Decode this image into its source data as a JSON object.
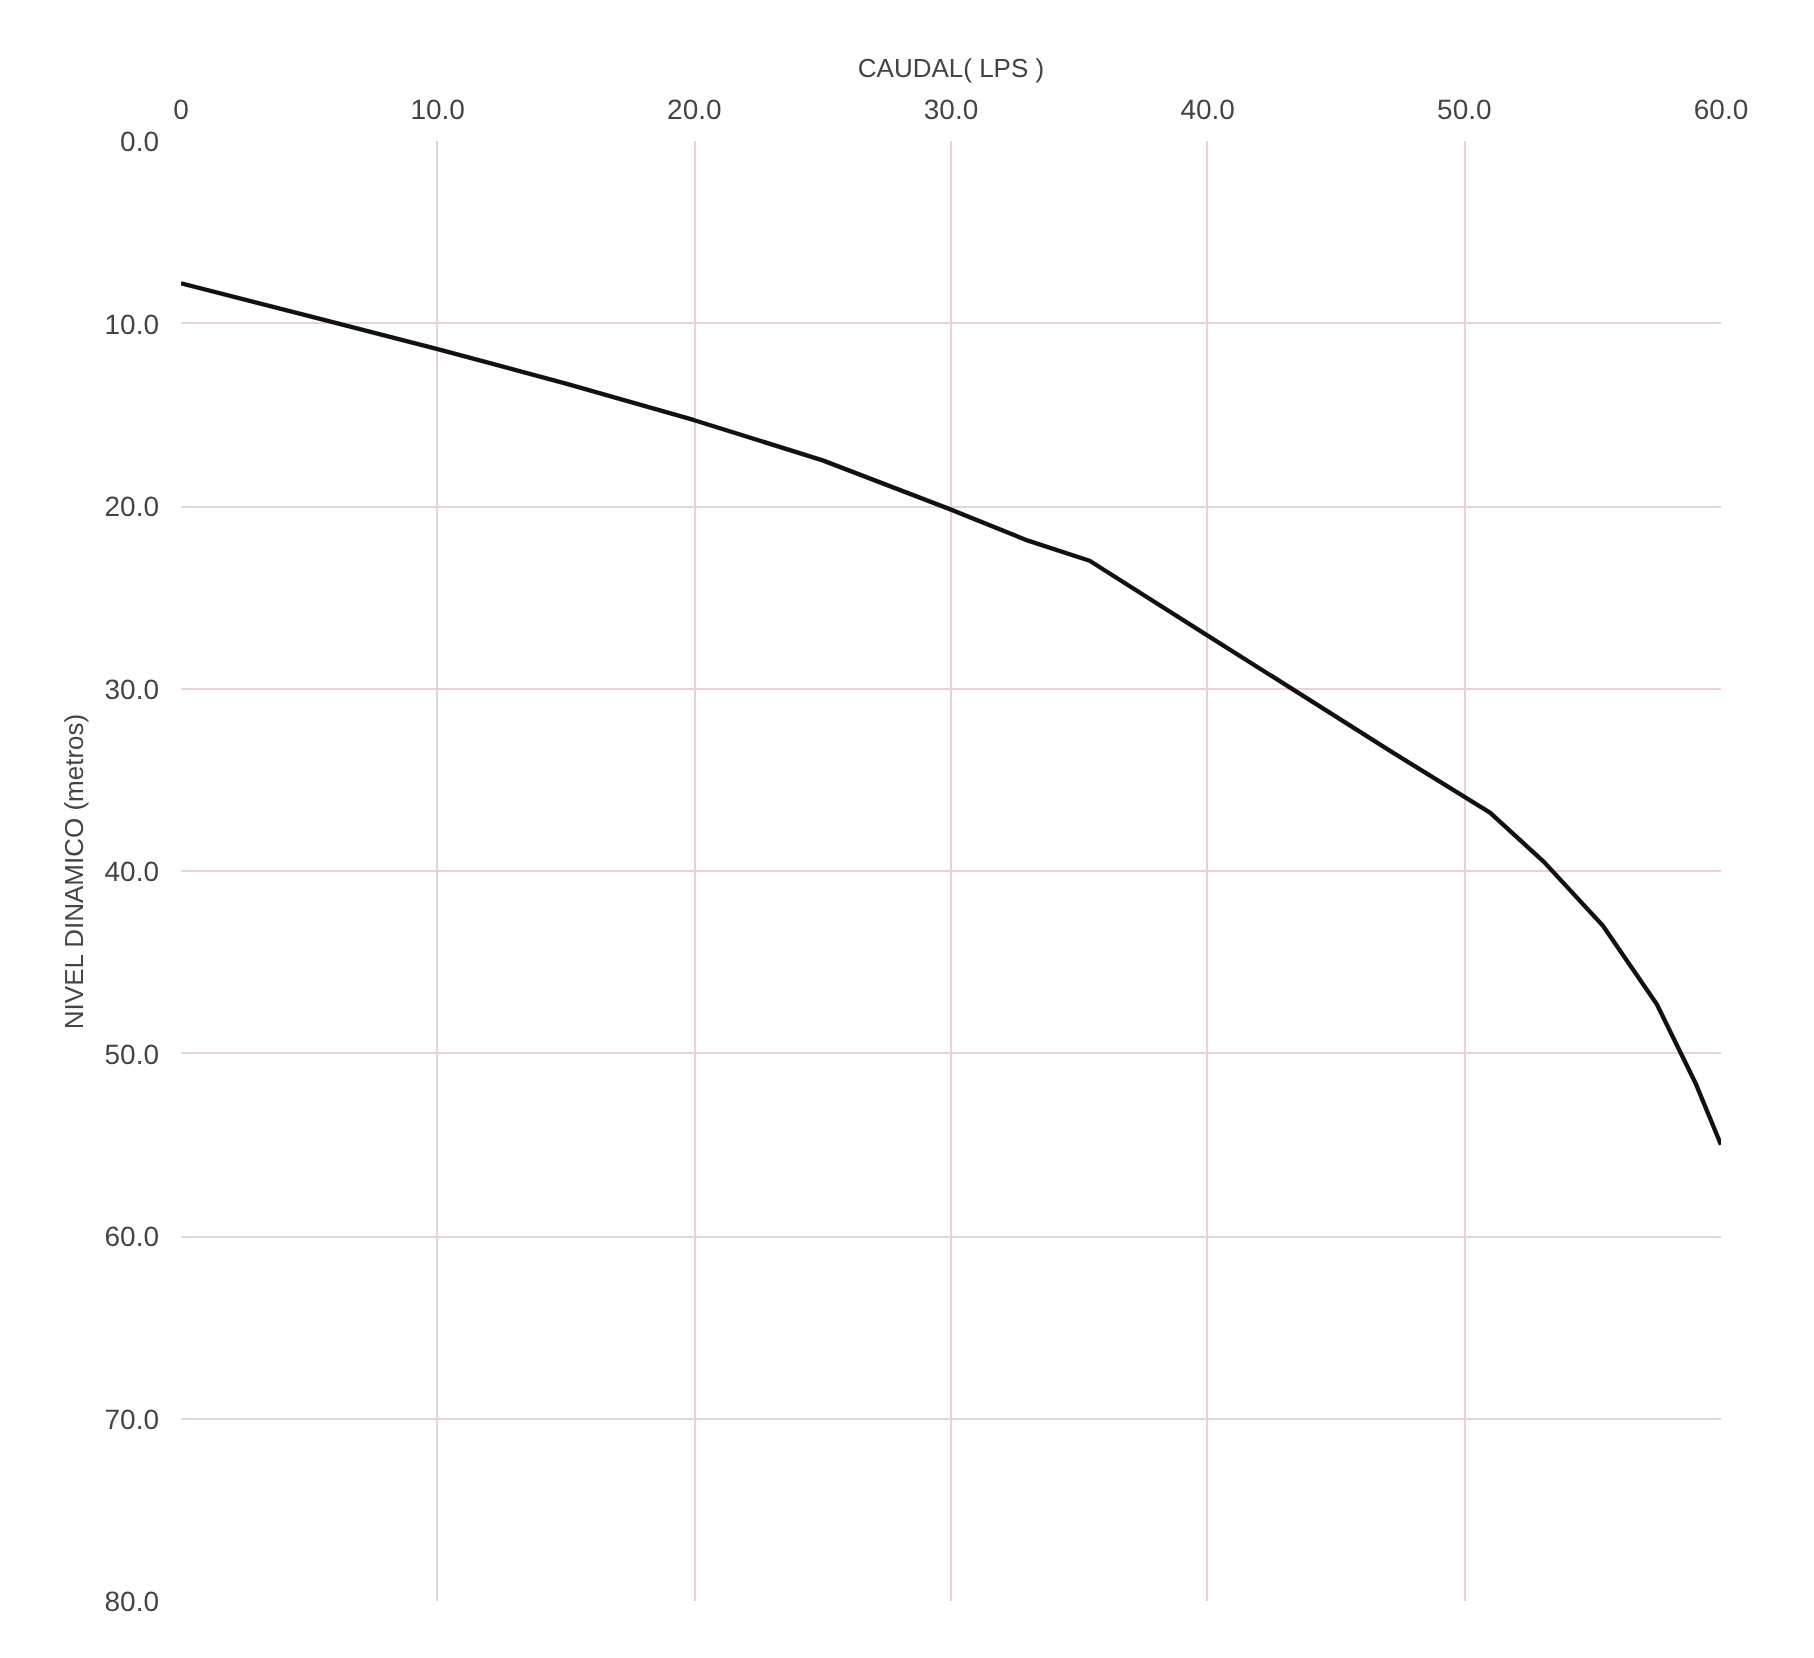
{
  "chart_data": {
    "type": "line",
    "xlabel": "CAUDAL( LPS )",
    "ylabel": "NIVEL DINAMICO (metros)",
    "xlim": [
      0,
      60
    ],
    "ylim": [
      80,
      0
    ],
    "xticks": [
      {
        "value": 0,
        "label": "0"
      },
      {
        "value": 10,
        "label": "10.0"
      },
      {
        "value": 20,
        "label": "20.0"
      },
      {
        "value": 30,
        "label": "30.0"
      },
      {
        "value": 40,
        "label": "40.0"
      },
      {
        "value": 50,
        "label": "50.0"
      },
      {
        "value": 60,
        "label": "60.0"
      }
    ],
    "yticks": [
      {
        "value": 0,
        "label": "0.0"
      },
      {
        "value": 10,
        "label": "10.0"
      },
      {
        "value": 20,
        "label": "20.0"
      },
      {
        "value": 30,
        "label": "30.0"
      },
      {
        "value": 40,
        "label": "40.0"
      },
      {
        "value": 50,
        "label": "50.0"
      },
      {
        "value": 60,
        "label": "60.0"
      },
      {
        "value": 70,
        "label": "70.0"
      },
      {
        "value": 80,
        "label": "80.0"
      }
    ],
    "grid": true,
    "marker": "none",
    "line_style": "solid",
    "series": [
      {
        "color": "#111111",
        "x": [
          0,
          5,
          10,
          15,
          20,
          25,
          30,
          33,
          35.4,
          40,
          47.2,
          51,
          53.1,
          55.4,
          57.5,
          59,
          60
        ],
        "values": [
          7.8,
          9.6,
          11.4,
          13.3,
          15.3,
          17.5,
          20.2,
          21.9,
          23,
          27.1,
          33.5,
          36.8,
          39.5,
          43,
          47.3,
          51.6,
          55
        ]
      }
    ]
  }
}
